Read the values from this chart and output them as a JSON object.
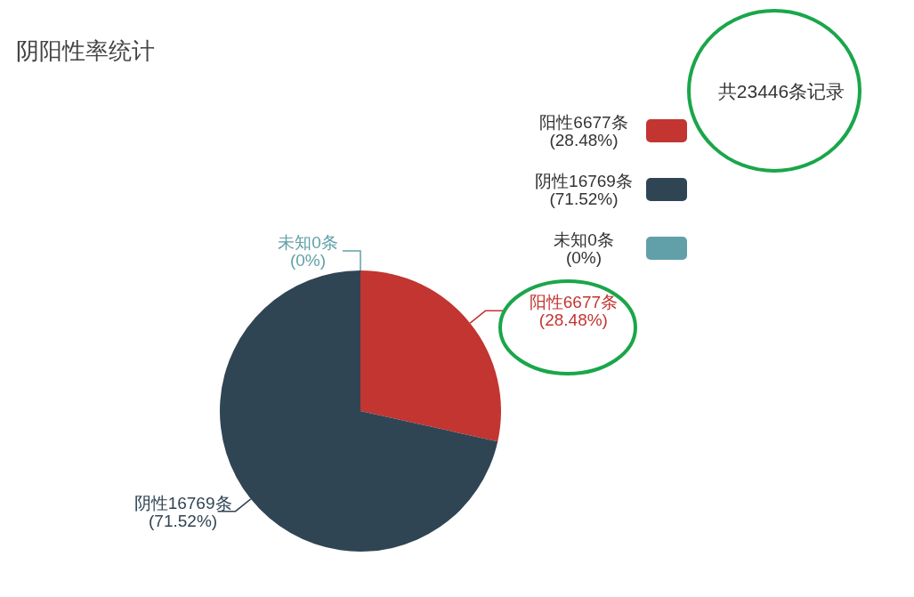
{
  "chart_data": {
    "type": "pie",
    "title": "阴阳性率统计",
    "categories": [
      "阳性6677条\n(28.48%)",
      "阴性16769条\n(71.52%)",
      "未知0条\n(0%)"
    ],
    "values": [
      6677,
      16769,
      0
    ],
    "colors": [
      "#c23531",
      "#2f4554",
      "#61a0a8"
    ],
    "legend": "top right",
    "annotations": [
      "共23446条记录"
    ]
  }
}
